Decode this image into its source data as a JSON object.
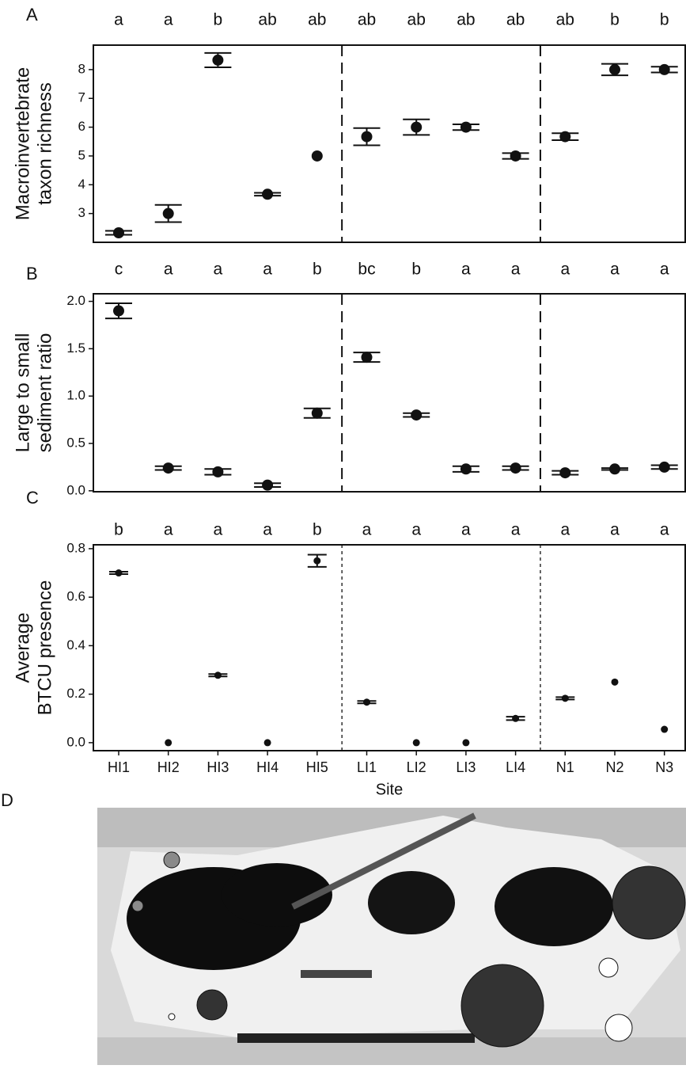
{
  "chart_data": [
    {
      "type": "point",
      "panel_label": "A",
      "ylabel": [
        "Macroinvertebrate",
        "taxon richness"
      ],
      "group_letters": [
        "a",
        "a",
        "b",
        "ab",
        "ab",
        "ab",
        "ab",
        "ab",
        "ab",
        "ab",
        "b",
        "b"
      ],
      "values": [
        2.33,
        3.0,
        8.33,
        3.67,
        5.0,
        5.67,
        6.0,
        6.0,
        5.0,
        5.67,
        8.0,
        8.0
      ],
      "errors": [
        0.07,
        0.3,
        0.25,
        0.05,
        null,
        0.3,
        0.27,
        0.1,
        0.1,
        0.12,
        0.2,
        0.1
      ],
      "ylim": [
        2.0,
        8.85
      ],
      "yticks": [
        3,
        4,
        5,
        6,
        7,
        8
      ],
      "color": "#111111"
    },
    {
      "type": "point",
      "panel_label": "B",
      "ylabel": [
        "Large to small",
        "sediment ratio"
      ],
      "group_letters": [
        "c",
        "a",
        "a",
        "a",
        "b",
        "bc",
        "b",
        "a",
        "a",
        "a",
        "a",
        "a"
      ],
      "values": [
        1.9,
        0.24,
        0.2,
        0.06,
        0.82,
        1.41,
        0.8,
        0.23,
        0.24,
        0.19,
        0.23,
        0.25
      ],
      "errors": [
        0.08,
        0.02,
        0.03,
        0.02,
        0.05,
        0.05,
        0.02,
        0.03,
        0.02,
        0.02,
        0.01,
        0.02
      ],
      "ylim": [
        -0.01,
        2.08
      ],
      "yticks": [
        {
          "value": 0,
          "label": "0.0"
        },
        0.5,
        {
          "value": 1,
          "label": "1.0"
        },
        1.5,
        {
          "value": 2,
          "label": "2.0"
        }
      ],
      "color": "#111111"
    },
    {
      "type": "point",
      "panel_label": "C",
      "ylabel": [
        "Average",
        "BTCU presence"
      ],
      "xlabel": "Site",
      "categories": [
        "HI1",
        "HI2",
        "HI3",
        "HI4",
        "HI5",
        "LI1",
        "LI2",
        "LI3",
        "LI4",
        "N1",
        "N2",
        "N3"
      ],
      "group_letters": [
        "b",
        "a",
        "a",
        "a",
        "b",
        "a",
        "a",
        "a",
        "a",
        "a",
        "a",
        "a"
      ],
      "values": [
        0.7,
        0,
        0.278,
        0,
        0.75,
        0.167,
        0,
        0,
        0.1,
        0.183,
        0.25,
        0.055
      ],
      "errors": [
        0.005,
        null,
        0.005,
        null,
        0.025,
        0.005,
        null,
        null,
        0.007,
        0.005,
        null,
        null
      ],
      "ylim": [
        -0.033,
        0.816
      ],
      "yticks": [
        {
          "value": 0,
          "label": "0.0"
        },
        0.2,
        0.4,
        0.6,
        0.8
      ],
      "color": "#111111"
    }
  ],
  "map": {
    "panel_label": "D"
  }
}
